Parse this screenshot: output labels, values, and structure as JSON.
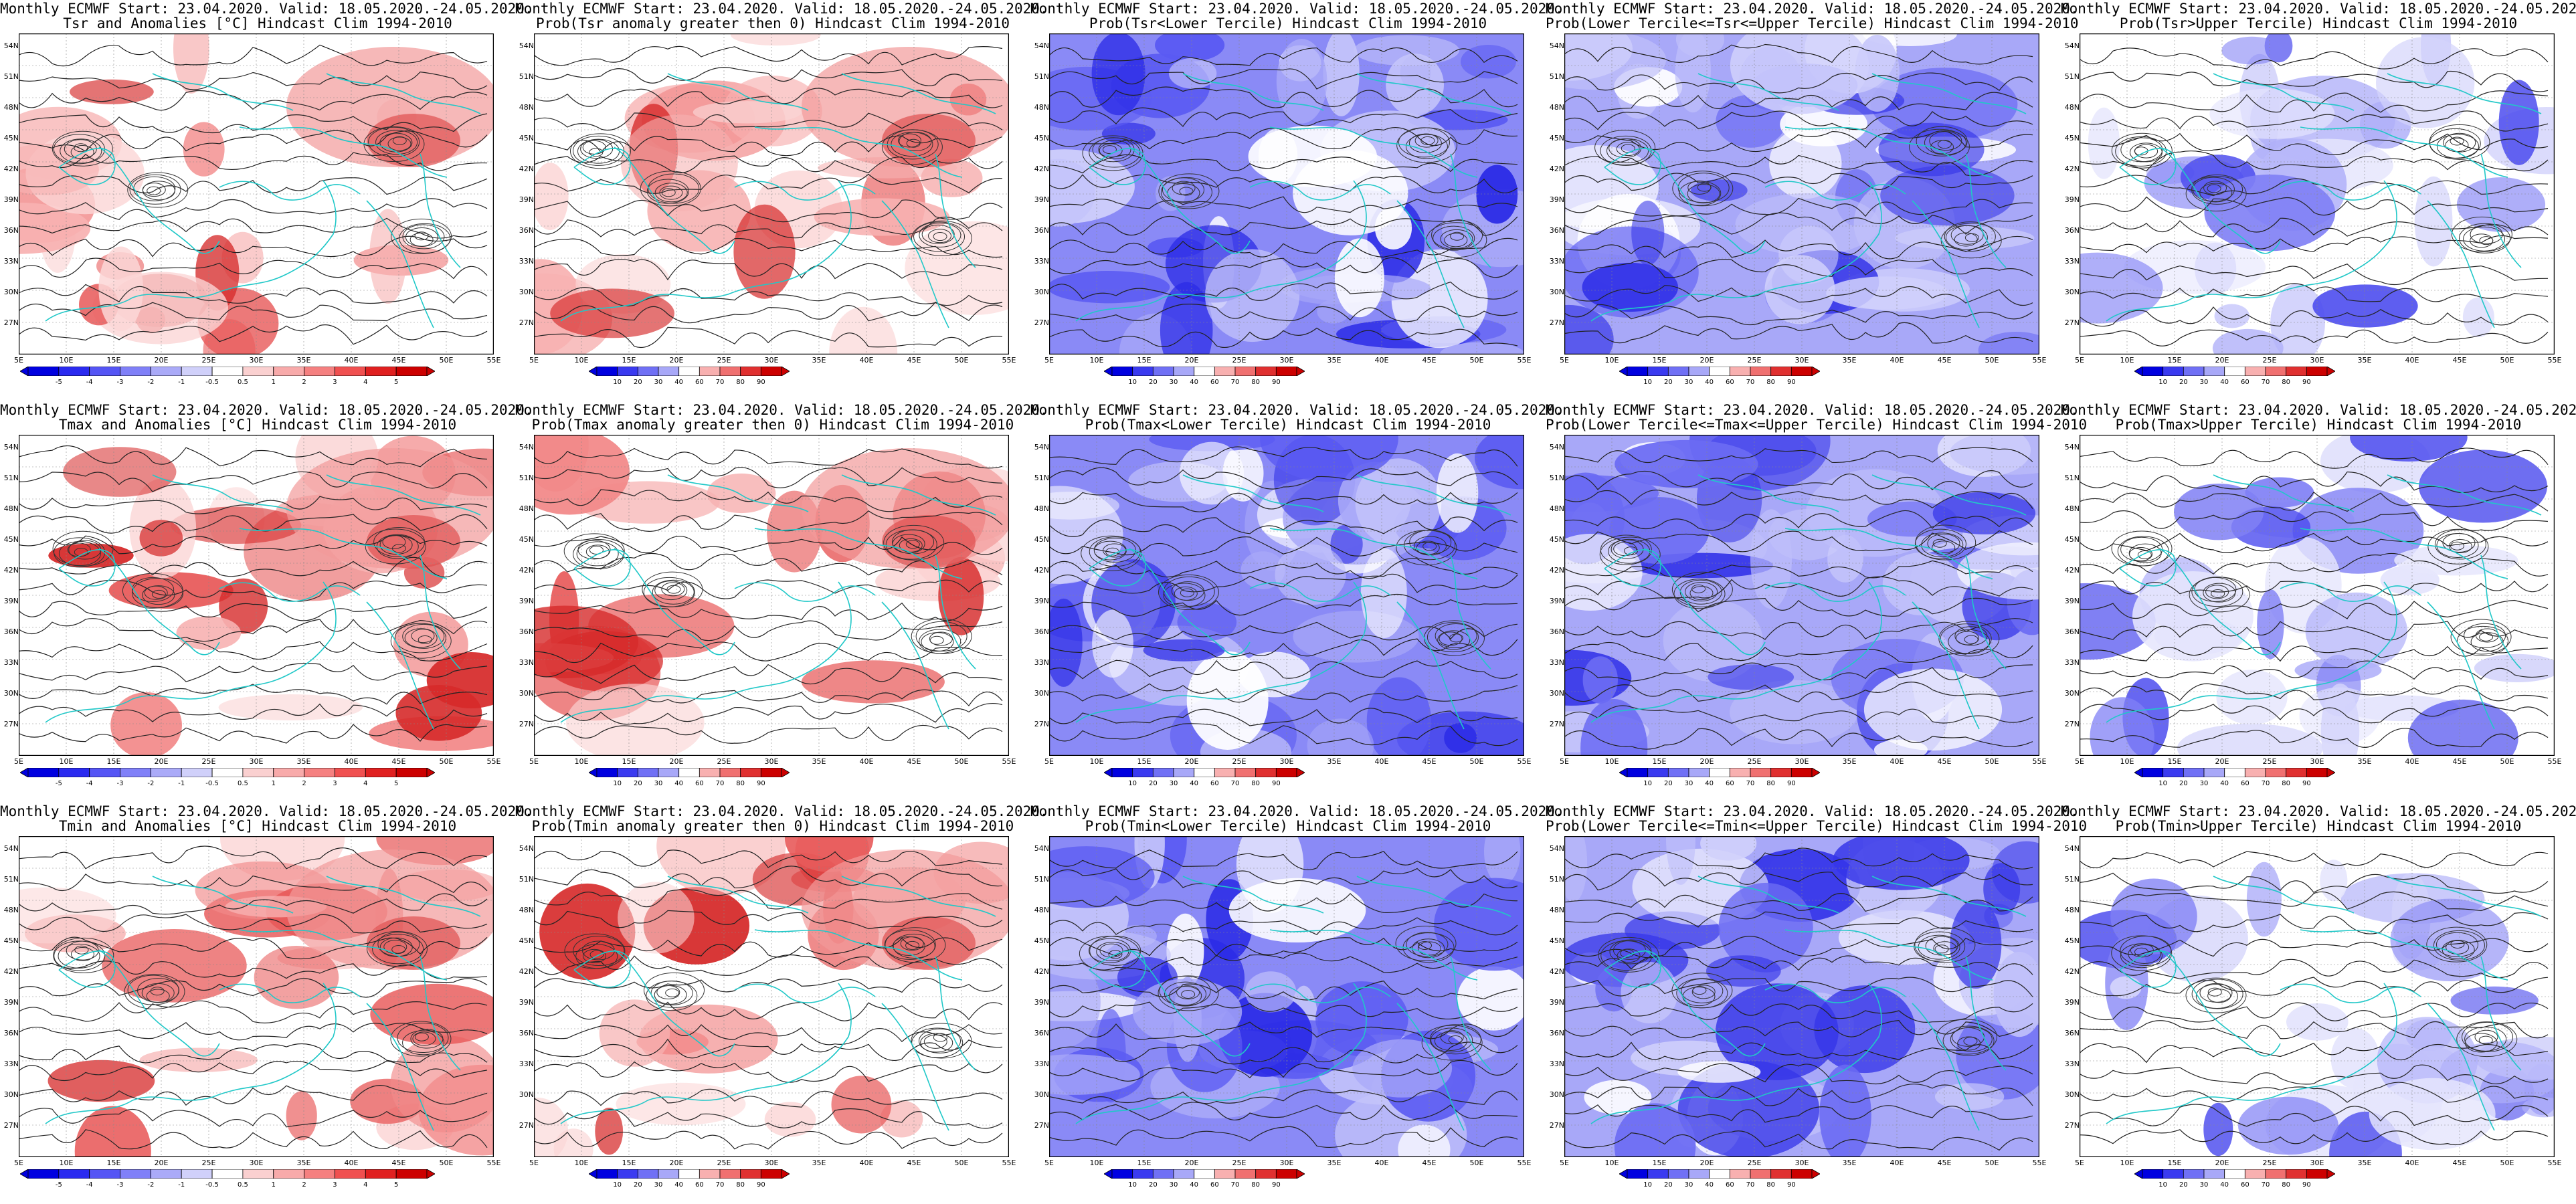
{
  "header_line": "Monthly ECMWF Start: 23.04.2020. Valid: 18.05.2020.-24.05.2020.",
  "lat_labels": [
    "54N",
    "51N",
    "48N",
    "45N",
    "42N",
    "39N",
    "36N",
    "33N",
    "30N",
    "27N"
  ],
  "lon_labels": [
    "5E",
    "10E",
    "15E",
    "20E",
    "25E",
    "30E",
    "35E",
    "40E",
    "45E",
    "50E",
    "55E"
  ],
  "colorbars": {
    "anomaly": {
      "ticks": [
        "-5",
        "-4",
        "-3",
        "-2",
        "-1",
        "-0.5",
        "0.5",
        "1",
        "2",
        "3",
        "4",
        "5"
      ],
      "colors": [
        "#0000e0",
        "#2a2af0",
        "#5555f5",
        "#8080f8",
        "#aaaaf8",
        "#d0d0fa",
        "#ffffff",
        "#fad0d0",
        "#f8aaaa",
        "#f58080",
        "#f05050",
        "#e02020",
        "#cc0000"
      ]
    },
    "probability": {
      "ticks": [
        "10",
        "20",
        "30",
        "40",
        "60",
        "70",
        "80",
        "90"
      ],
      "colors": [
        "#0000e0",
        "#3a3af0",
        "#7070f5",
        "#a8a8f8",
        "#ffffff",
        "#f8b0b0",
        "#f07070",
        "#e03030",
        "#cc0000"
      ]
    }
  },
  "panels": [
    {
      "id": "tsr-anomalies",
      "title2": "Tsr and Anomalies [°C] Hindcast Clim 1994-2010",
      "scale": "anomaly",
      "style": "red"
    },
    {
      "id": "tsr-prob-gt0",
      "title2": "Prob(Tsr anomaly greater then 0) Hindcast Clim 1994-2010",
      "scale": "probability",
      "style": "red"
    },
    {
      "id": "tsr-lower",
      "title2": "Prob(Tsr<Lower Tercile) Hindcast Clim 1994-2010",
      "scale": "probability",
      "style": "blue-strong"
    },
    {
      "id": "tsr-middle",
      "title2": "Prob(Lower Tercile<=Tsr<=Upper Tercile) Hindcast Clim 1994-2010",
      "scale": "probability",
      "style": "blue-mid"
    },
    {
      "id": "tsr-upper",
      "title2": "Prob(Tsr>Upper Tercile) Hindcast Clim 1994-2010",
      "scale": "probability",
      "style": "blue-light"
    },
    {
      "id": "tmax-anomalies",
      "title2": "Tmax and Anomalies [°C] Hindcast Clim 1994-2010",
      "scale": "anomaly",
      "style": "red"
    },
    {
      "id": "tmax-prob-gt0",
      "title2": "Prob(Tmax anomaly greater then 0) Hindcast Clim 1994-2010",
      "scale": "probability",
      "style": "red"
    },
    {
      "id": "tmax-lower",
      "title2": "Prob(Tmax<Lower Tercile) Hindcast Clim 1994-2010",
      "scale": "probability",
      "style": "blue-strong"
    },
    {
      "id": "tmax-middle",
      "title2": "Prob(Lower Tercile<=Tmax<=Upper Tercile) Hindcast Clim 1994-2010",
      "scale": "probability",
      "style": "blue-mid"
    },
    {
      "id": "tmax-upper",
      "title2": "Prob(Tmax>Upper Tercile) Hindcast Clim 1994-2010",
      "scale": "probability",
      "style": "blue-light"
    },
    {
      "id": "tmin-anomalies",
      "title2": "Tmin and Anomalies [°C] Hindcast Clim 1994-2010",
      "scale": "anomaly",
      "style": "red"
    },
    {
      "id": "tmin-prob-gt0",
      "title2": "Prob(Tmin anomaly greater then 0) Hindcast Clim 1994-2010",
      "scale": "probability",
      "style": "red"
    },
    {
      "id": "tmin-lower",
      "title2": "Prob(Tmin<Lower Tercile) Hindcast Clim 1994-2010",
      "scale": "probability",
      "style": "blue-strong"
    },
    {
      "id": "tmin-middle",
      "title2": "Prob(Lower Tercile<=Tmin<=Upper Tercile) Hindcast Clim 1994-2010",
      "scale": "probability",
      "style": "blue-mid"
    },
    {
      "id": "tmin-upper",
      "title2": "Prob(Tmin>Upper Tercile) Hindcast Clim 1994-2010",
      "scale": "probability",
      "style": "blue-light"
    }
  ]
}
